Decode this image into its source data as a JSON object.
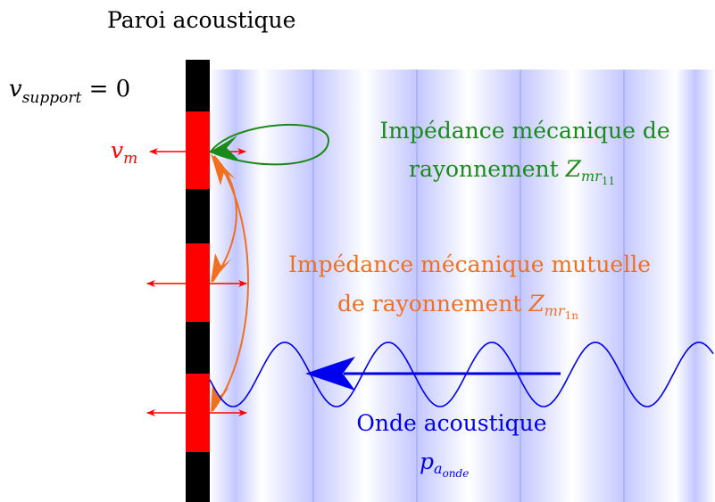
{
  "title": "Paroi acoustique",
  "support_label": {
    "var": "v",
    "sub": "support",
    "eq": " = 0"
  },
  "membrane_label": {
    "var": "v",
    "sub": "m"
  },
  "self_impedance": {
    "line1": "Impédance mécanique de",
    "line2_text": "rayonnement ",
    "symbol": "Z",
    "sub": "mr",
    "subsub": "11"
  },
  "mutual_impedance": {
    "line1": "Impédance mécanique mutuelle",
    "line2_text": "de rayonnement ",
    "symbol": "Z",
    "sub": "mr",
    "subsub": "1n"
  },
  "wave": {
    "label": "Onde acoustique",
    "symbol": "p",
    "sub": "a",
    "subsub": "onde"
  },
  "colors": {
    "wall": "#000000",
    "membrane": "#ff0000",
    "self_impedance": "#1a8a1a",
    "mutual_impedance": "#f07020",
    "wave": "#0000ee",
    "field": "#c8ccff"
  }
}
